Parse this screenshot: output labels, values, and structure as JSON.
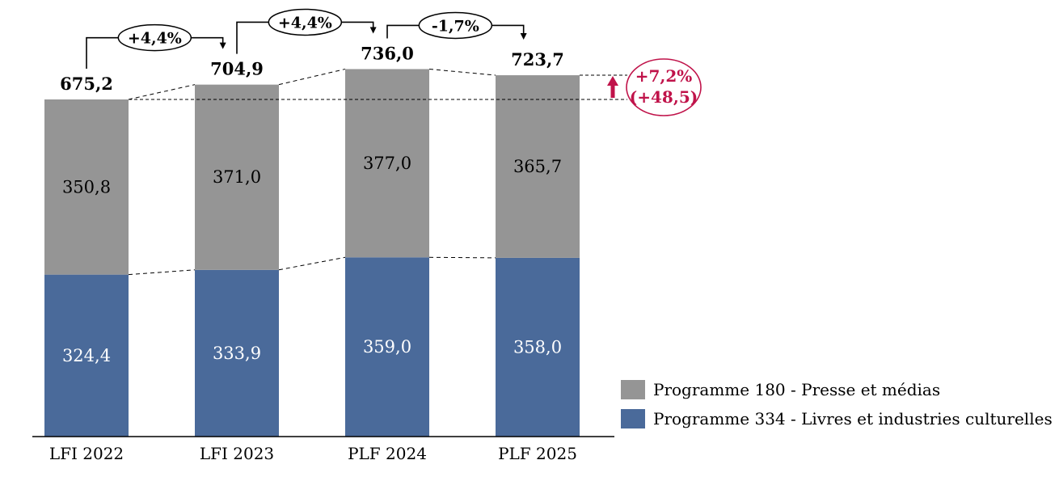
{
  "chart_data": {
    "type": "bar",
    "stacked": true,
    "categories": [
      "LFI 2022",
      "LFI 2023",
      "PLF 2024",
      "PLF 2025"
    ],
    "series": [
      {
        "name": "Programme 334 - Livres et industries culturelles",
        "values": [
          324.4,
          333.9,
          359.0,
          358.0
        ],
        "value_labels": [
          "324,4",
          "333,9",
          "359,0",
          "358,0"
        ],
        "color": "#4a6a9a",
        "label_color": "#ffffff"
      },
      {
        "name": "Programme 180 - Presse et médias",
        "values": [
          350.8,
          371.0,
          377.0,
          365.7
        ],
        "value_labels": [
          "350,8",
          "371,0",
          "377,0",
          "365,7"
        ],
        "color": "#959595",
        "label_color": "#000000"
      }
    ],
    "totals": [
      675.2,
      704.9,
      736.0,
      723.7
    ],
    "total_labels": [
      "675,2",
      "704,9",
      "736,0",
      "723,7"
    ],
    "year_changes": [
      {
        "from": 0,
        "to": 1,
        "label": "+4,4%"
      },
      {
        "from": 1,
        "to": 2,
        "label": "+4,4%"
      },
      {
        "from": 2,
        "to": 3,
        "label": "-1,7%"
      }
    ],
    "overall_change": {
      "from": 0,
      "to": 3,
      "percent_label": "+7,2%",
      "abs_label": "(+48,5)",
      "color": "#c0134a"
    },
    "ylim": [
      0,
      800
    ],
    "title": "",
    "xlabel": "",
    "ylabel": "",
    "grid": false,
    "legend_position": "bottom-right"
  }
}
